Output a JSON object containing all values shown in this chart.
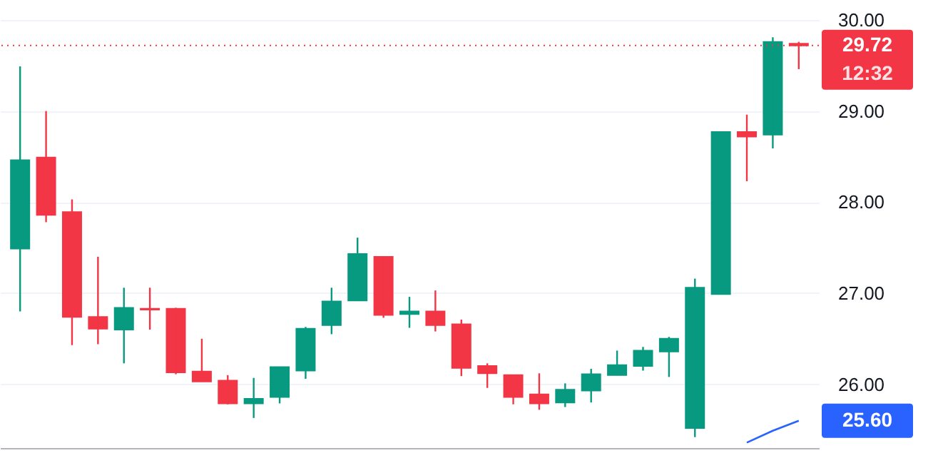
{
  "chart_data": {
    "type": "candlestick",
    "categories": [
      null,
      null,
      null,
      null,
      null,
      null,
      null,
      null,
      null,
      null,
      null,
      null,
      null,
      null,
      null,
      null,
      null,
      null,
      null,
      null,
      null,
      null,
      null,
      null,
      null,
      null,
      null,
      null,
      null,
      null,
      null
    ],
    "ohlc": [
      [
        27.49,
        29.49,
        26.8,
        28.46
      ],
      [
        28.49,
        29.0,
        27.78,
        27.86
      ],
      [
        27.89,
        28.03,
        26.43,
        26.74
      ],
      [
        26.74,
        27.4,
        26.44,
        26.61
      ],
      [
        26.6,
        27.06,
        26.23,
        26.84
      ],
      [
        26.83,
        27.06,
        26.6,
        26.82
      ],
      [
        26.83,
        26.84,
        26.11,
        26.13
      ],
      [
        26.14,
        26.5,
        26.03,
        26.03
      ],
      [
        26.04,
        26.1,
        25.78,
        25.79
      ],
      [
        25.79,
        26.07,
        25.63,
        25.84
      ],
      [
        25.86,
        26.19,
        25.79,
        26.19
      ],
      [
        26.15,
        26.63,
        26.06,
        26.61
      ],
      [
        26.65,
        27.06,
        26.55,
        26.91
      ],
      [
        26.92,
        27.61,
        26.92,
        27.43
      ],
      [
        27.4,
        27.4,
        26.73,
        26.76
      ],
      [
        26.77,
        26.96,
        26.62,
        26.8
      ],
      [
        26.8,
        27.03,
        26.58,
        26.65
      ],
      [
        26.66,
        26.71,
        26.09,
        26.18
      ],
      [
        26.2,
        26.23,
        25.96,
        26.12
      ],
      [
        26.1,
        26.1,
        25.78,
        25.86
      ],
      [
        25.89,
        26.12,
        25.72,
        25.79
      ],
      [
        25.8,
        26.01,
        25.75,
        25.94
      ],
      [
        25.93,
        26.17,
        25.8,
        26.11
      ],
      [
        26.1,
        26.37,
        26.1,
        26.21
      ],
      [
        26.2,
        26.41,
        26.15,
        26.37
      ],
      [
        26.36,
        26.52,
        26.08,
        26.5
      ],
      [
        25.52,
        27.16,
        25.42,
        27.06
      ],
      [
        26.99,
        28.77,
        26.99,
        28.77
      ],
      [
        28.77,
        28.96,
        28.23,
        28.72
      ],
      [
        28.74,
        29.81,
        28.59,
        29.76
      ],
      [
        29.74,
        29.76,
        29.46,
        29.72
      ]
    ],
    "colors": [
      "#089981",
      "#f23645",
      "#f23645",
      "#f23645",
      "#089981",
      "#f23645",
      "#f23645",
      "#f23645",
      "#f23645",
      "#089981",
      "#089981",
      "#089981",
      "#089981",
      "#089981",
      "#f23645",
      "#089981",
      "#f23645",
      "#f23645",
      "#f23645",
      "#f23645",
      "#f23645",
      "#089981",
      "#089981",
      "#089981",
      "#089981",
      "#089981",
      "#089981",
      "#089981",
      "#f23645",
      "#089981",
      "#f23645"
    ],
    "series": [
      {
        "type": "line",
        "color": "#2962ff",
        "values": [
          null,
          null,
          null,
          null,
          null,
          null,
          null,
          null,
          null,
          null,
          null,
          null,
          null,
          null,
          null,
          null,
          null,
          null,
          null,
          null,
          null,
          null,
          null,
          null,
          null,
          null,
          null,
          null,
          25.36,
          25.49,
          25.6
        ]
      }
    ],
    "ylim": [
      25.3,
      30.0
    ],
    "yticks": [
      {
        "value": 26,
        "label": "26.00"
      },
      {
        "value": 27,
        "label": "27.00"
      },
      {
        "value": 28,
        "label": "28.00"
      },
      {
        "value": 29,
        "label": "29.00"
      },
      {
        "value": 30,
        "label": "30.00"
      }
    ],
    "grid": "y",
    "ref_lines": [
      {
        "axis": "y",
        "value": 29.72,
        "label": "29.72",
        "color": "#f23645",
        "line_style": "dotted"
      }
    ],
    "annotations": [
      "12:32",
      "25.60"
    ]
  }
}
